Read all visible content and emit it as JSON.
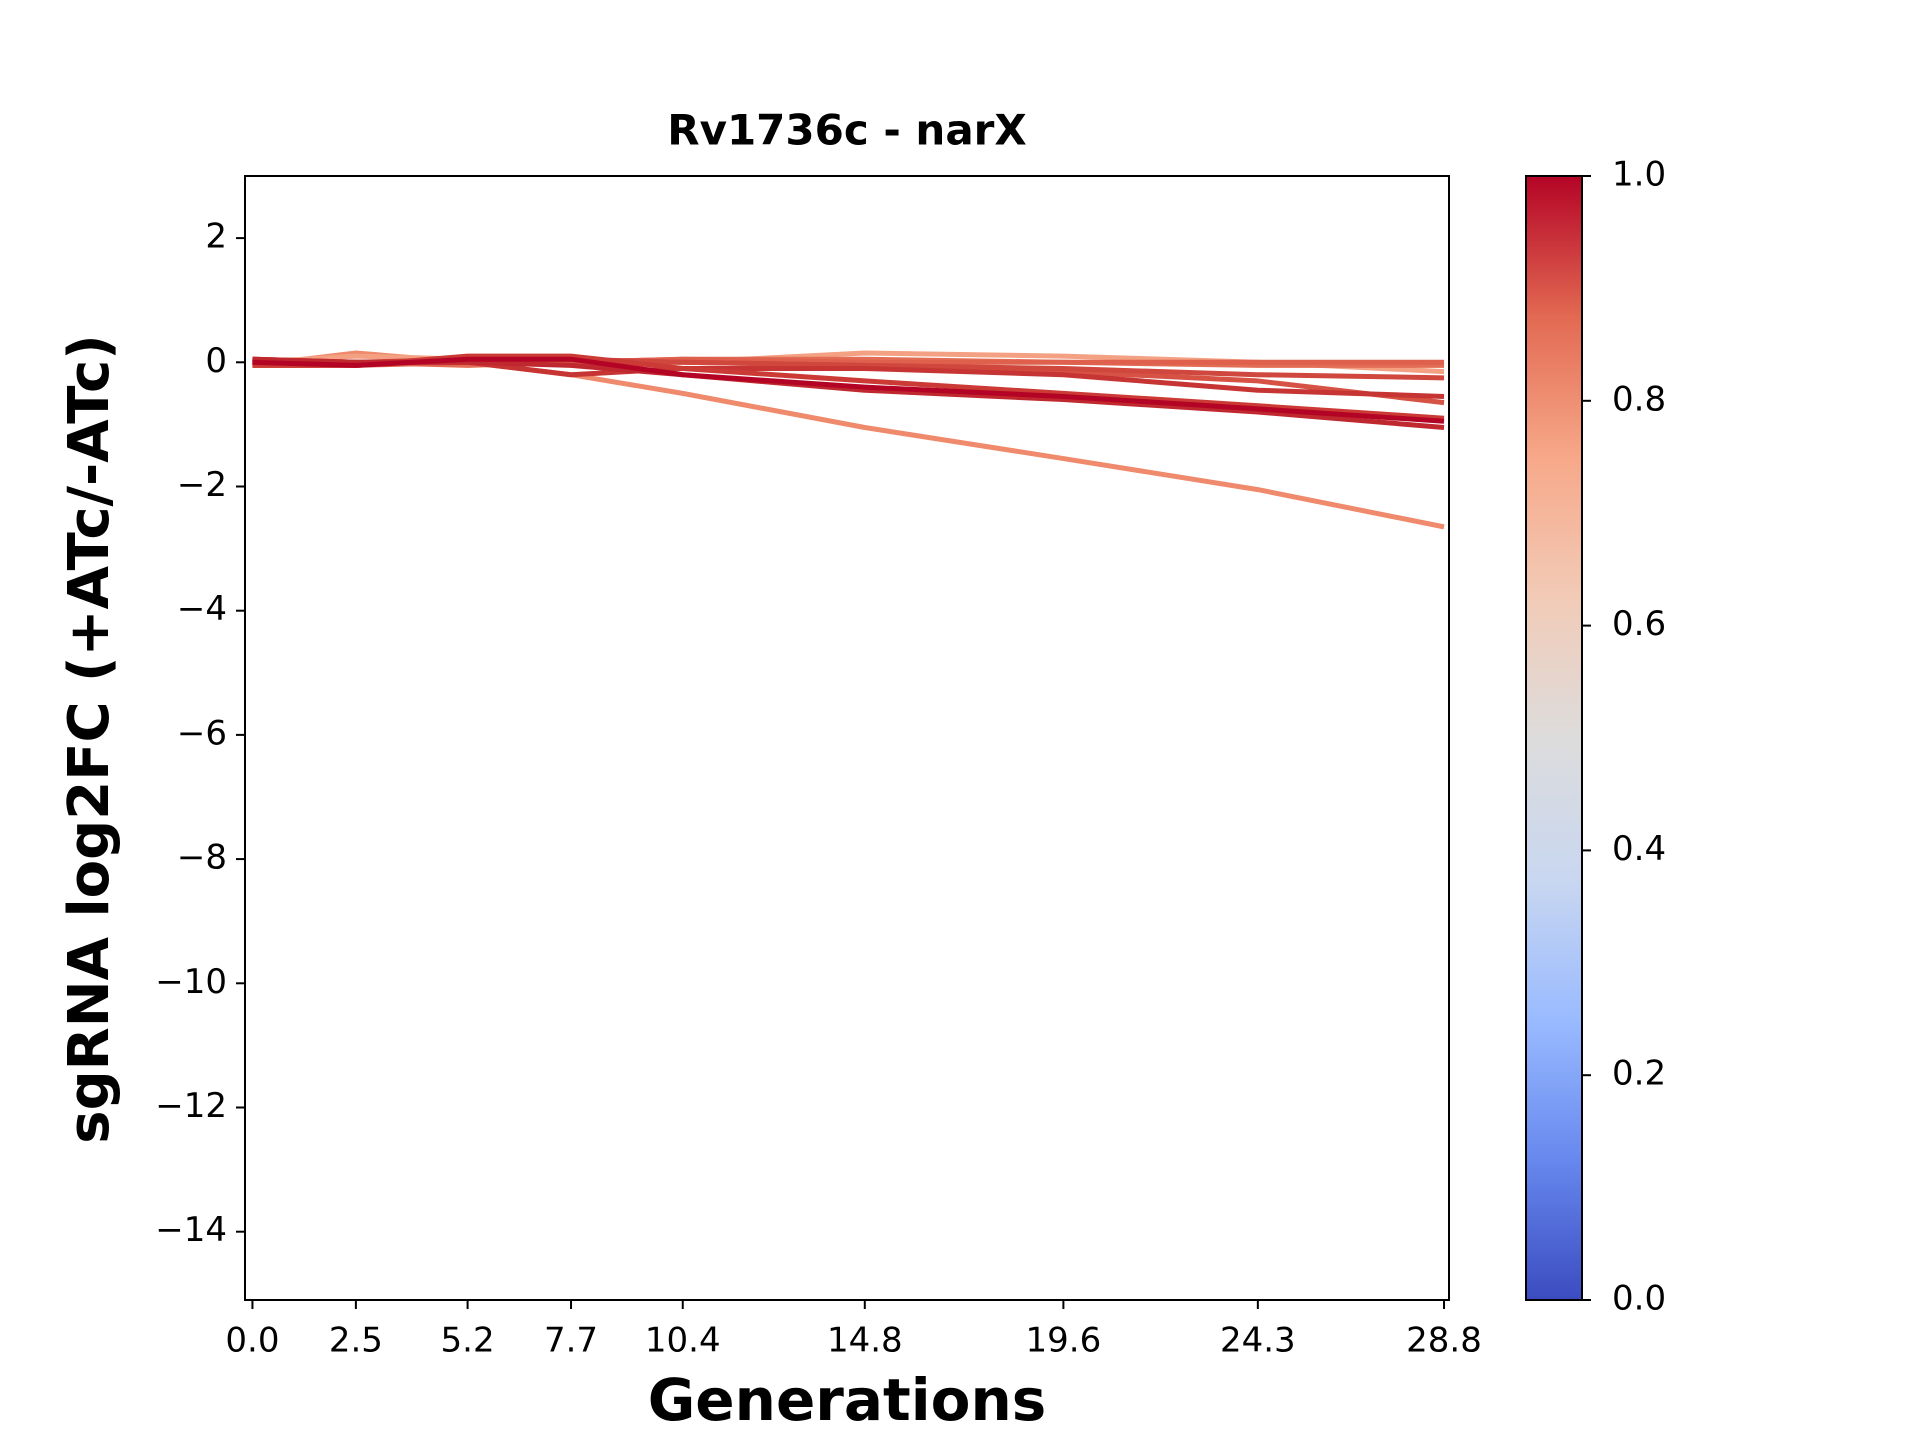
{
  "chart_data": {
    "type": "line",
    "title": "Rv1736c - narX",
    "x_label": "Generations",
    "y_label": "sgRNA log2FC (+ATc/-ATc)",
    "x": [
      0,
      2.5,
      5.2,
      7.7,
      10.4,
      14.8,
      19.6,
      24.3,
      28.8
    ],
    "xlim": [
      -0.18,
      28.92
    ],
    "xticks": [
      {
        "value": 0,
        "label": "0.0"
      },
      2.5,
      5.2,
      7.7,
      10.4,
      14.8,
      19.6,
      24.3,
      28.8
    ],
    "ylim": [
      -15.1,
      3
    ],
    "yticks": [
      {
        "value": -14,
        "label": "−14"
      },
      {
        "value": -12,
        "label": "−12"
      },
      {
        "value": -10,
        "label": "−10"
      },
      {
        "value": -8,
        "label": "−8"
      },
      {
        "value": -6,
        "label": "−6"
      },
      {
        "value": -4,
        "label": "−4"
      },
      {
        "value": -2,
        "label": "−2"
      },
      0,
      2
    ],
    "grid": false,
    "series": [
      {
        "color": "#ef8a6c",
        "values": [
          -0.05,
          0.15,
          0.0,
          -0.2,
          -0.5,
          -1.05,
          -1.55,
          -2.05,
          -2.65
        ]
      },
      {
        "color": "#f4a183",
        "values": [
          0.0,
          0.1,
          0.05,
          0.0,
          0.0,
          0.15,
          0.1,
          0.0,
          -0.15
        ]
      },
      {
        "color": "#e36c55",
        "values": [
          0.05,
          0.0,
          -0.05,
          0.0,
          0.05,
          0.05,
          0.0,
          -0.05,
          -0.05
        ]
      },
      {
        "color": "#de604d",
        "values": [
          0.0,
          -0.05,
          0.0,
          0.0,
          0.05,
          0.0,
          0.0,
          0.0,
          0.0
        ]
      },
      {
        "color": "#d65244",
        "values": [
          -0.05,
          -0.05,
          0.05,
          0.0,
          0.0,
          -0.05,
          -0.15,
          -0.3,
          -0.65
        ]
      },
      {
        "color": "#d0473d",
        "values": [
          0.05,
          0.0,
          0.05,
          0.05,
          0.0,
          -0.05,
          -0.1,
          -0.2,
          -0.25
        ]
      },
      {
        "color": "#c63533",
        "values": [
          0.0,
          0.0,
          0.0,
          -0.2,
          -0.1,
          -0.1,
          -0.2,
          -0.45,
          -0.55
        ]
      },
      {
        "color": "#cc3a35",
        "values": [
          -0.05,
          -0.05,
          0.1,
          0.1,
          -0.1,
          -0.3,
          -0.5,
          -0.7,
          -0.9
        ]
      },
      {
        "color": "#c0282f",
        "values": [
          0.05,
          0.0,
          0.0,
          -0.05,
          -0.2,
          -0.45,
          -0.6,
          -0.8,
          -1.05
        ]
      },
      {
        "color": "#b40426",
        "values": [
          0.0,
          -0.05,
          0.05,
          0.05,
          -0.2,
          -0.4,
          -0.55,
          -0.75,
          -0.95
        ]
      }
    ],
    "colorbar": {
      "lim": [
        0,
        1
      ],
      "ticks": [
        {
          "value": 0,
          "label": "0.0"
        },
        0.2,
        0.4,
        0.6,
        0.8,
        {
          "value": 1,
          "label": "1.0"
        }
      ],
      "colors": [
        "#3b4cc0",
        "#6788ee",
        "#9abbff",
        "#c9d7f0",
        "#dddcdc",
        "#f2cbb7",
        "#f7a889",
        "#e26952",
        "#b40426"
      ]
    }
  }
}
